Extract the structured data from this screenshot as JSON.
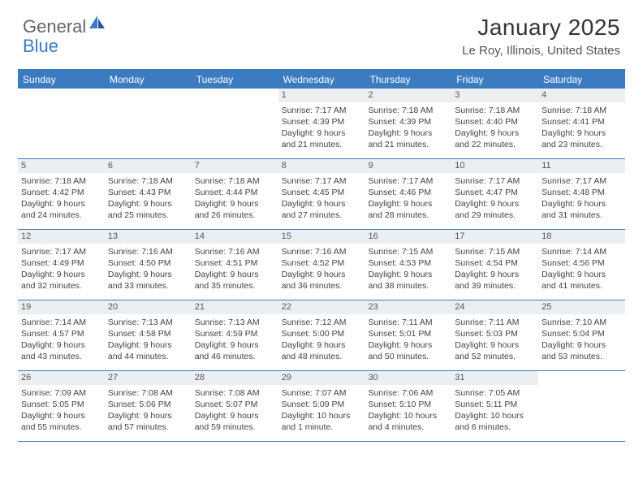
{
  "brand": {
    "part1": "General",
    "part2": "Blue"
  },
  "title": "January 2025",
  "location": "Le Roy, Illinois, United States",
  "colors": {
    "accent": "#3b7bbf",
    "header_bg": "#eceff1",
    "text": "#333333",
    "muted": "#555555",
    "white": "#ffffff"
  },
  "weekdays": [
    "Sunday",
    "Monday",
    "Tuesday",
    "Wednesday",
    "Thursday",
    "Friday",
    "Saturday"
  ],
  "weeks": [
    [
      {
        "n": "",
        "sr": "",
        "ss": "",
        "dl": ""
      },
      {
        "n": "",
        "sr": "",
        "ss": "",
        "dl": ""
      },
      {
        "n": "",
        "sr": "",
        "ss": "",
        "dl": ""
      },
      {
        "n": "1",
        "sr": "Sunrise: 7:17 AM",
        "ss": "Sunset: 4:39 PM",
        "dl": "Daylight: 9 hours and 21 minutes."
      },
      {
        "n": "2",
        "sr": "Sunrise: 7:18 AM",
        "ss": "Sunset: 4:39 PM",
        "dl": "Daylight: 9 hours and 21 minutes."
      },
      {
        "n": "3",
        "sr": "Sunrise: 7:18 AM",
        "ss": "Sunset: 4:40 PM",
        "dl": "Daylight: 9 hours and 22 minutes."
      },
      {
        "n": "4",
        "sr": "Sunrise: 7:18 AM",
        "ss": "Sunset: 4:41 PM",
        "dl": "Daylight: 9 hours and 23 minutes."
      }
    ],
    [
      {
        "n": "5",
        "sr": "Sunrise: 7:18 AM",
        "ss": "Sunset: 4:42 PM",
        "dl": "Daylight: 9 hours and 24 minutes."
      },
      {
        "n": "6",
        "sr": "Sunrise: 7:18 AM",
        "ss": "Sunset: 4:43 PM",
        "dl": "Daylight: 9 hours and 25 minutes."
      },
      {
        "n": "7",
        "sr": "Sunrise: 7:18 AM",
        "ss": "Sunset: 4:44 PM",
        "dl": "Daylight: 9 hours and 26 minutes."
      },
      {
        "n": "8",
        "sr": "Sunrise: 7:17 AM",
        "ss": "Sunset: 4:45 PM",
        "dl": "Daylight: 9 hours and 27 minutes."
      },
      {
        "n": "9",
        "sr": "Sunrise: 7:17 AM",
        "ss": "Sunset: 4:46 PM",
        "dl": "Daylight: 9 hours and 28 minutes."
      },
      {
        "n": "10",
        "sr": "Sunrise: 7:17 AM",
        "ss": "Sunset: 4:47 PM",
        "dl": "Daylight: 9 hours and 29 minutes."
      },
      {
        "n": "11",
        "sr": "Sunrise: 7:17 AM",
        "ss": "Sunset: 4:48 PM",
        "dl": "Daylight: 9 hours and 31 minutes."
      }
    ],
    [
      {
        "n": "12",
        "sr": "Sunrise: 7:17 AM",
        "ss": "Sunset: 4:49 PM",
        "dl": "Daylight: 9 hours and 32 minutes."
      },
      {
        "n": "13",
        "sr": "Sunrise: 7:16 AM",
        "ss": "Sunset: 4:50 PM",
        "dl": "Daylight: 9 hours and 33 minutes."
      },
      {
        "n": "14",
        "sr": "Sunrise: 7:16 AM",
        "ss": "Sunset: 4:51 PM",
        "dl": "Daylight: 9 hours and 35 minutes."
      },
      {
        "n": "15",
        "sr": "Sunrise: 7:16 AM",
        "ss": "Sunset: 4:52 PM",
        "dl": "Daylight: 9 hours and 36 minutes."
      },
      {
        "n": "16",
        "sr": "Sunrise: 7:15 AM",
        "ss": "Sunset: 4:53 PM",
        "dl": "Daylight: 9 hours and 38 minutes."
      },
      {
        "n": "17",
        "sr": "Sunrise: 7:15 AM",
        "ss": "Sunset: 4:54 PM",
        "dl": "Daylight: 9 hours and 39 minutes."
      },
      {
        "n": "18",
        "sr": "Sunrise: 7:14 AM",
        "ss": "Sunset: 4:56 PM",
        "dl": "Daylight: 9 hours and 41 minutes."
      }
    ],
    [
      {
        "n": "19",
        "sr": "Sunrise: 7:14 AM",
        "ss": "Sunset: 4:57 PM",
        "dl": "Daylight: 9 hours and 43 minutes."
      },
      {
        "n": "20",
        "sr": "Sunrise: 7:13 AM",
        "ss": "Sunset: 4:58 PM",
        "dl": "Daylight: 9 hours and 44 minutes."
      },
      {
        "n": "21",
        "sr": "Sunrise: 7:13 AM",
        "ss": "Sunset: 4:59 PM",
        "dl": "Daylight: 9 hours and 46 minutes."
      },
      {
        "n": "22",
        "sr": "Sunrise: 7:12 AM",
        "ss": "Sunset: 5:00 PM",
        "dl": "Daylight: 9 hours and 48 minutes."
      },
      {
        "n": "23",
        "sr": "Sunrise: 7:11 AM",
        "ss": "Sunset: 5:01 PM",
        "dl": "Daylight: 9 hours and 50 minutes."
      },
      {
        "n": "24",
        "sr": "Sunrise: 7:11 AM",
        "ss": "Sunset: 5:03 PM",
        "dl": "Daylight: 9 hours and 52 minutes."
      },
      {
        "n": "25",
        "sr": "Sunrise: 7:10 AM",
        "ss": "Sunset: 5:04 PM",
        "dl": "Daylight: 9 hours and 53 minutes."
      }
    ],
    [
      {
        "n": "26",
        "sr": "Sunrise: 7:09 AM",
        "ss": "Sunset: 5:05 PM",
        "dl": "Daylight: 9 hours and 55 minutes."
      },
      {
        "n": "27",
        "sr": "Sunrise: 7:08 AM",
        "ss": "Sunset: 5:06 PM",
        "dl": "Daylight: 9 hours and 57 minutes."
      },
      {
        "n": "28",
        "sr": "Sunrise: 7:08 AM",
        "ss": "Sunset: 5:07 PM",
        "dl": "Daylight: 9 hours and 59 minutes."
      },
      {
        "n": "29",
        "sr": "Sunrise: 7:07 AM",
        "ss": "Sunset: 5:09 PM",
        "dl": "Daylight: 10 hours and 1 minute."
      },
      {
        "n": "30",
        "sr": "Sunrise: 7:06 AM",
        "ss": "Sunset: 5:10 PM",
        "dl": "Daylight: 10 hours and 4 minutes."
      },
      {
        "n": "31",
        "sr": "Sunrise: 7:05 AM",
        "ss": "Sunset: 5:11 PM",
        "dl": "Daylight: 10 hours and 6 minutes."
      },
      {
        "n": "",
        "sr": "",
        "ss": "",
        "dl": ""
      }
    ]
  ]
}
